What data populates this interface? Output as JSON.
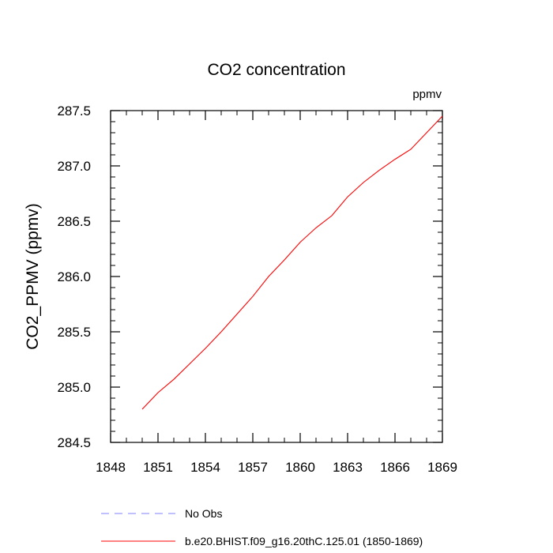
{
  "chart_data": {
    "type": "line",
    "title": "CO2 concentration",
    "units_label": "ppmv",
    "xlabel": "",
    "ylabel": "CO2_PPMV  (ppmv)",
    "xlim": [
      1848,
      1869
    ],
    "ylim": [
      284.5,
      287.5
    ],
    "x_ticks": [
      1848,
      1851,
      1854,
      1857,
      1860,
      1863,
      1866,
      1869
    ],
    "x_tick_labels": [
      "1848",
      "1851",
      "1854",
      "1857",
      "1860",
      "1863",
      "1866",
      "1869"
    ],
    "y_ticks": [
      284.5,
      285.0,
      285.5,
      286.0,
      286.5,
      287.0,
      287.5
    ],
    "y_tick_labels": [
      "284.5",
      "285.0",
      "285.5",
      "286.0",
      "286.5",
      "287.0",
      "287.5"
    ],
    "grid": false,
    "legend_position": "bottom",
    "series": [
      {
        "name": "No Obs",
        "color": "#8080ff",
        "dash": "dashed",
        "x": [],
        "y": []
      },
      {
        "name": "b.e20.BHIST.f09_g16.20thC.125.01 (1850-1869)",
        "color": "#ff0000",
        "dash": "solid",
        "x": [
          1850,
          1851,
          1852,
          1853,
          1854,
          1855,
          1856,
          1857,
          1858,
          1859,
          1860,
          1861,
          1862,
          1863,
          1864,
          1865,
          1866,
          1867,
          1868,
          1869
        ],
        "y": [
          284.8,
          284.95,
          285.07,
          285.21,
          285.35,
          285.5,
          285.66,
          285.82,
          286.0,
          286.15,
          286.31,
          286.44,
          286.55,
          286.72,
          286.85,
          286.96,
          287.06,
          287.15,
          287.3,
          287.45
        ]
      }
    ]
  }
}
